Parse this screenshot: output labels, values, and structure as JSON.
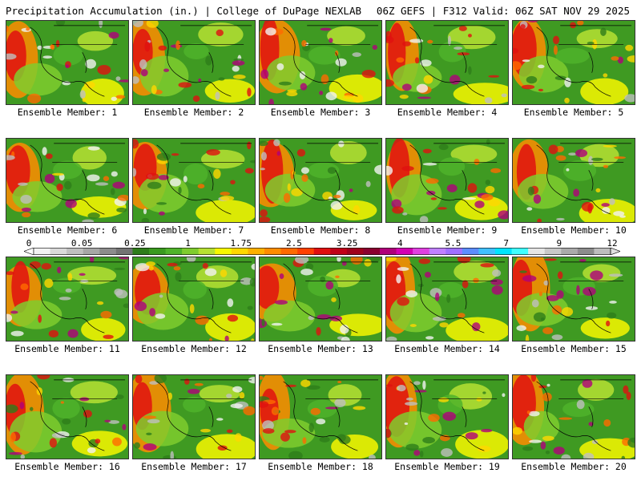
{
  "header": {
    "left": "Precipitation Accumulation (in.) | College of DuPage NEXLAB",
    "right": "06Z GEFS | F312 Valid: 06Z SAT NOV 29 2025"
  },
  "members": [
    {
      "label": "Ensemble Member: 1"
    },
    {
      "label": "Ensemble Member: 2"
    },
    {
      "label": "Ensemble Member: 3"
    },
    {
      "label": "Ensemble Member: 4"
    },
    {
      "label": "Ensemble Member: 5"
    },
    {
      "label": "Ensemble Member: 6"
    },
    {
      "label": "Ensemble Member: 7"
    },
    {
      "label": "Ensemble Member: 8"
    },
    {
      "label": "Ensemble Member: 9"
    },
    {
      "label": "Ensemble Member: 10"
    },
    {
      "label": "Ensemble Member: 11"
    },
    {
      "label": "Ensemble Member: 12"
    },
    {
      "label": "Ensemble Member: 13"
    },
    {
      "label": "Ensemble Member: 14"
    },
    {
      "label": "Ensemble Member: 15"
    },
    {
      "label": "Ensemble Member: 16"
    },
    {
      "label": "Ensemble Member: 17"
    },
    {
      "label": "Ensemble Member: 18"
    },
    {
      "label": "Ensemble Member: 19"
    },
    {
      "label": "Ensemble Member: 20"
    }
  ],
  "colorbar": {
    "tick_labels": [
      "0",
      "0.05",
      "0.25",
      "1",
      "1.75",
      "2.5",
      "3.25",
      "4",
      "5.5",
      "7",
      "9",
      "12"
    ],
    "colors": [
      "#f2f2f2",
      "#d9d9d9",
      "#bfbfbf",
      "#a6a6a6",
      "#8c8c8c",
      "#737373",
      "#2e7d1a",
      "#3a9a1f",
      "#4fb32a",
      "#7fcc2e",
      "#b6e032",
      "#f7f700",
      "#ffd700",
      "#ffb000",
      "#ff8c00",
      "#ff6a00",
      "#ff4000",
      "#e01010",
      "#c00018",
      "#a0001c",
      "#8a0030",
      "#b0007a",
      "#d400b4",
      "#e040e0",
      "#c080ff",
      "#9f6fff",
      "#5c8cff",
      "#40c0ff",
      "#00e5ff",
      "#40ffff",
      "#e6e6e6",
      "#c8c8c8",
      "#aaaaaa",
      "#8c8c8c",
      "#bdbdbd"
    ]
  }
}
